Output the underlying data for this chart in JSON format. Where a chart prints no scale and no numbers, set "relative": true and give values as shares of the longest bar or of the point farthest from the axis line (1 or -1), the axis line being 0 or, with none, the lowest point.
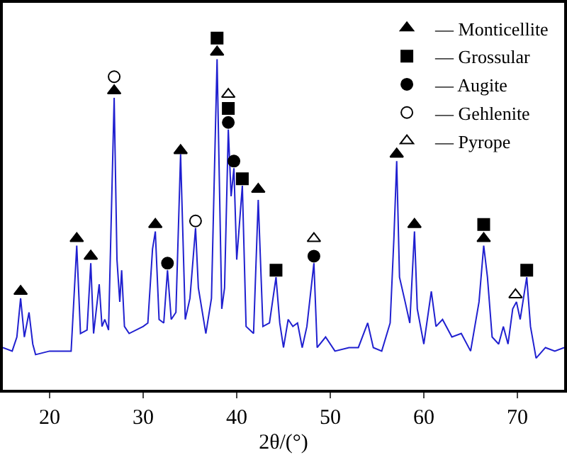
{
  "chart_data": {
    "type": "line",
    "xlabel": "2θ/(°)",
    "relative": true,
    "xlim": [
      15,
      75
    ],
    "xticks": [
      20,
      30,
      40,
      50,
      60,
      70
    ],
    "legend": "top right",
    "grid": false,
    "series": [
      {
        "color": "#2020d0",
        "marker": "none",
        "x": [
          15,
          16,
          16.5,
          16.9,
          17.3,
          17.8,
          18.2,
          18.5,
          20,
          22.3,
          22.9,
          23.3,
          24,
          24.4,
          24.7,
          25.3,
          25.6,
          25.9,
          26.3,
          26.9,
          27.2,
          27.5,
          27.7,
          28,
          28.5,
          30,
          30.5,
          31,
          31.3,
          31.7,
          32.2,
          32.6,
          33,
          33.5,
          34,
          34.5,
          35,
          35.6,
          35.9,
          36.7,
          37.3,
          37.9,
          38.4,
          38.7,
          39.1,
          39.4,
          39.7,
          40,
          40.6,
          41,
          41.8,
          42.3,
          42.8,
          43.5,
          44.2,
          44.6,
          45,
          45.5,
          46,
          46.5,
          47,
          47.5,
          48.25,
          48.6,
          49.5,
          50.5,
          52,
          53,
          54,
          54.6,
          55.5,
          56.4,
          56.8,
          57.1,
          57.4,
          58,
          58.5,
          59,
          59.3,
          60,
          60.8,
          61.3,
          62,
          63,
          64,
          65,
          65.9,
          66.4,
          66.8,
          67.3,
          68,
          68.5,
          69,
          69.5,
          69.9,
          70.3,
          71,
          71.4,
          72,
          73,
          74,
          75
        ],
        "values": [
          0.12,
          0.11,
          0.15,
          0.26,
          0.15,
          0.22,
          0.13,
          0.1,
          0.11,
          0.11,
          0.41,
          0.16,
          0.17,
          0.36,
          0.16,
          0.3,
          0.18,
          0.2,
          0.17,
          0.83,
          0.37,
          0.25,
          0.34,
          0.18,
          0.16,
          0.18,
          0.19,
          0.4,
          0.45,
          0.2,
          0.19,
          0.34,
          0.2,
          0.22,
          0.67,
          0.2,
          0.26,
          0.46,
          0.29,
          0.16,
          0.26,
          0.94,
          0.23,
          0.29,
          0.74,
          0.55,
          0.63,
          0.37,
          0.58,
          0.18,
          0.16,
          0.54,
          0.18,
          0.19,
          0.32,
          0.19,
          0.12,
          0.2,
          0.18,
          0.19,
          0.12,
          0.18,
          0.36,
          0.12,
          0.15,
          0.11,
          0.12,
          0.12,
          0.19,
          0.12,
          0.11,
          0.19,
          0.43,
          0.65,
          0.32,
          0.25,
          0.19,
          0.45,
          0.23,
          0.13,
          0.28,
          0.18,
          0.2,
          0.15,
          0.16,
          0.11,
          0.25,
          0.41,
          0.32,
          0.15,
          0.13,
          0.18,
          0.13,
          0.23,
          0.25,
          0.2,
          0.32,
          0.18,
          0.09,
          0.12,
          0.11,
          0.12
        ]
      },
      {
        "type": "scatter",
        "name": "— Monticellite",
        "color": "#000000",
        "marker": "triangle",
        "x": [
          16.9,
          22.9,
          24.4,
          26.9,
          31.3,
          34,
          37.9,
          42.3,
          57.1,
          59,
          66.4
        ],
        "values": [
          0.28,
          0.43,
          0.38,
          0.85,
          0.47,
          0.68,
          0.96,
          0.57,
          0.67,
          0.47,
          0.43
        ]
      },
      {
        "type": "scatter",
        "name": "— Grossular",
        "color": "#000000",
        "marker": "square",
        "x": [
          37.9,
          39.1,
          40.6,
          44.2,
          66.4,
          71
        ],
        "values": [
          1.0,
          0.8,
          0.6,
          0.34,
          0.47,
          0.34
        ]
      },
      {
        "type": "scatter",
        "name": "— Augite",
        "color": "#000000",
        "marker": "circle",
        "x": [
          32.6,
          39.1,
          39.7,
          48.25
        ],
        "values": [
          0.36,
          0.76,
          0.65,
          0.38
        ]
      },
      {
        "type": "scatter",
        "name": "— Gehlenite",
        "color": "#ffffff",
        "marker": "circle",
        "x": [
          26.9,
          35.6
        ],
        "values": [
          0.89,
          0.48
        ]
      },
      {
        "type": "scatter",
        "name": "— Pyrope",
        "color": "#ffffff",
        "marker": "triangle",
        "x": [
          39.1,
          48.25,
          69.8
        ],
        "values": [
          0.84,
          0.43,
          0.27
        ]
      }
    ]
  }
}
